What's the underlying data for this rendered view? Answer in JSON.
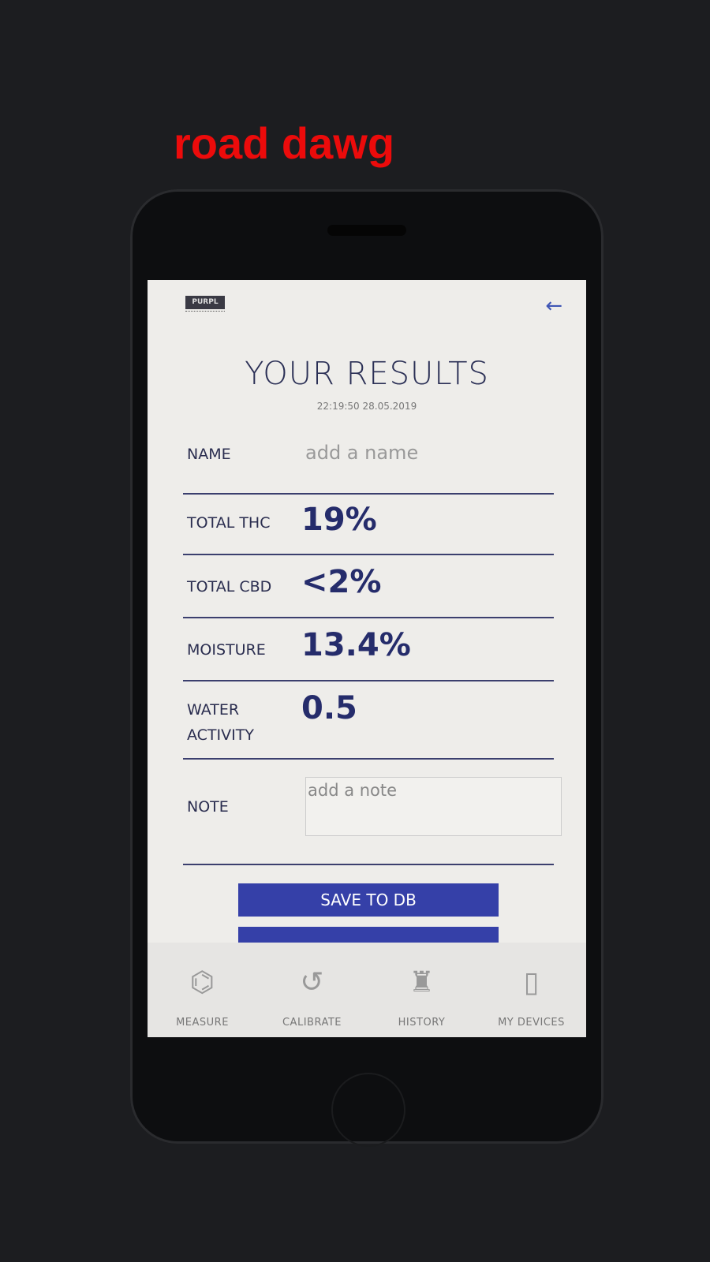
{
  "app": {
    "logo_text": "PURPL",
    "back_icon": "arrow-left-icon",
    "accent": "#3540a8"
  },
  "header": {
    "title": "YOUR RESULTS",
    "timestamp": "22:19:50 28.05.2019"
  },
  "fields": {
    "name": {
      "label": "NAME",
      "placeholder": "add a name"
    },
    "thc": {
      "label": "TOTAL THC",
      "value": "19%"
    },
    "cbd": {
      "label": "TOTAL CBD",
      "value": "<2%"
    },
    "moisture": {
      "label": "MOISTURE",
      "value": "13.4%"
    },
    "water_activity": {
      "label_line1": "WATER",
      "label_line2": "ACTIVITY",
      "value": "0.5"
    },
    "note": {
      "label": "NOTE",
      "placeholder": "add a note"
    }
  },
  "buttons": {
    "save": "SAVE TO DB"
  },
  "nav": [
    {
      "label": "MEASURE",
      "icon": "molecule-icon"
    },
    {
      "label": "CALIBRATE",
      "icon": "refresh-icon"
    },
    {
      "label": "HISTORY",
      "icon": "castle-icon"
    },
    {
      "label": "MY DEVICES",
      "icon": "phone-hand-icon"
    }
  ],
  "overlay_text": "road dawg"
}
